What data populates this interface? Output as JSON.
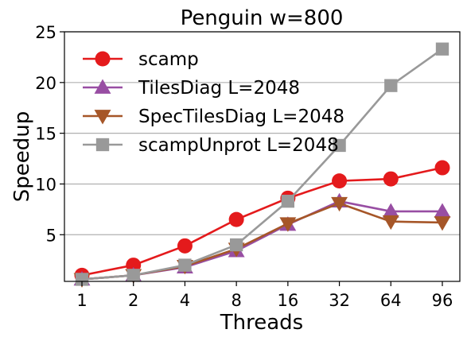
{
  "chart_data": {
    "type": "line",
    "title": "Penguin w=800",
    "xlabel": "Threads",
    "ylabel": "Speedup",
    "categories": [
      "1",
      "2",
      "4",
      "8",
      "16",
      "32",
      "64",
      "96"
    ],
    "ylim": [
      0.4,
      25
    ],
    "yticks": [
      5,
      10,
      15,
      20,
      25
    ],
    "grid": "y-major",
    "legend_position": "top-left",
    "series": [
      {
        "name": "scamp",
        "color": "#e41a1c",
        "marker": "circle",
        "values": [
          1.0,
          2.0,
          3.9,
          6.5,
          8.6,
          10.3,
          10.5,
          11.6
        ]
      },
      {
        "name": "TilesDiag L=2048",
        "color": "#984ea3",
        "marker": "triangle-up",
        "values": [
          0.6,
          1.0,
          1.8,
          3.4,
          6.0,
          8.3,
          7.3,
          7.3
        ]
      },
      {
        "name": "SpecTilesDiag L=2048",
        "color": "#a65628",
        "marker": "triangle-down",
        "values": [
          0.6,
          1.0,
          1.9,
          3.6,
          6.1,
          8.1,
          6.3,
          6.2
        ]
      },
      {
        "name": "scampUnprot L=2048",
        "color": "#999999",
        "marker": "square",
        "values": [
          0.6,
          1.0,
          2.0,
          4.0,
          8.3,
          13.8,
          19.7,
          23.3
        ]
      }
    ]
  }
}
